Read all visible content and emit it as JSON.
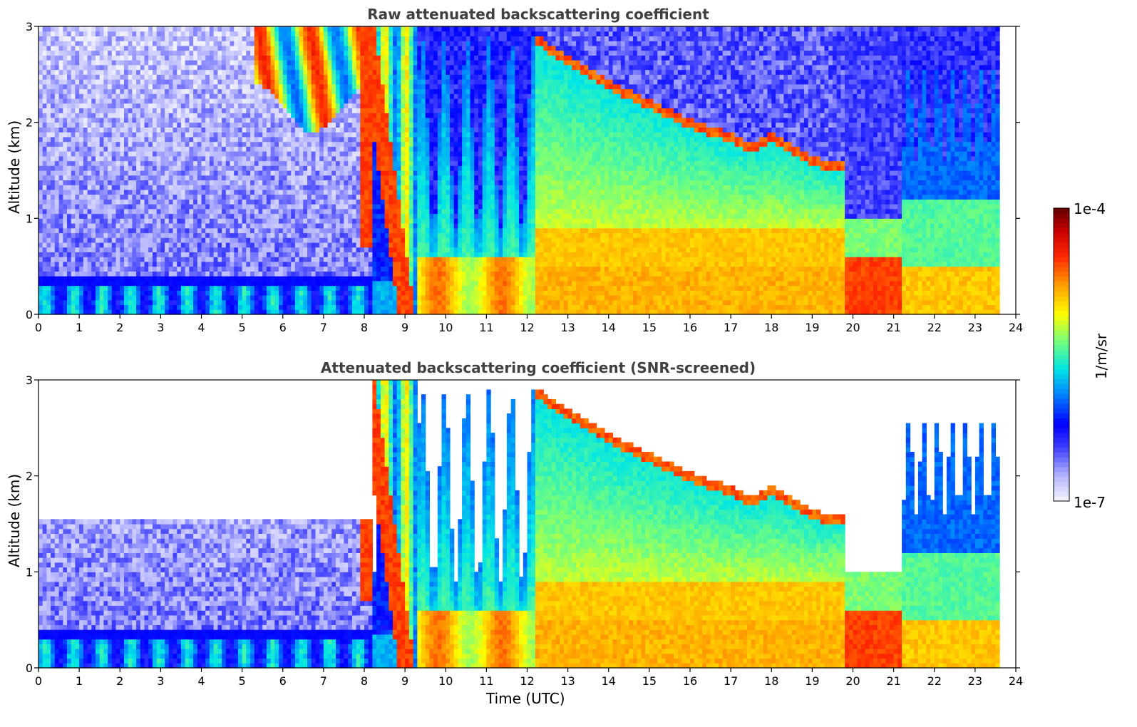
{
  "chart_data": [
    {
      "type": "heatmap",
      "title": "Raw attenuated backscattering coefficient",
      "xlabel": "",
      "ylabel": "Altitude (km)",
      "xlim": [
        0,
        24
      ],
      "ylim": [
        0,
        3
      ],
      "xticks": [
        "0",
        "1",
        "2",
        "3",
        "4",
        "5",
        "6",
        "7",
        "8",
        "9",
        "10",
        "11",
        "12",
        "13",
        "14",
        "15",
        "16",
        "17",
        "18",
        "19",
        "20",
        "21",
        "22",
        "23",
        "24"
      ],
      "yticks": [
        "0",
        "1",
        "2",
        "3"
      ],
      "cloud_top_km": [
        [
          12.3,
          2.85
        ],
        [
          13.0,
          2.65
        ],
        [
          13.8,
          2.45
        ],
        [
          14.5,
          2.3
        ],
        [
          15.0,
          2.2
        ],
        [
          16.0,
          2.0
        ],
        [
          17.0,
          1.85
        ],
        [
          17.5,
          1.75
        ],
        [
          18.0,
          1.85
        ],
        [
          18.5,
          1.75
        ],
        [
          19.0,
          1.6
        ],
        [
          19.8,
          1.55
        ]
      ],
      "screened": false
    },
    {
      "type": "heatmap",
      "title": "Attenuated backscattering coefficient (SNR-screened)",
      "xlabel": "Time (UTC)",
      "ylabel": "Altitude (km)",
      "xlim": [
        0,
        24
      ],
      "ylim": [
        0,
        3
      ],
      "xticks": [
        "0",
        "1",
        "2",
        "3",
        "4",
        "5",
        "6",
        "7",
        "8",
        "9",
        "10",
        "11",
        "12",
        "13",
        "14",
        "15",
        "16",
        "17",
        "18",
        "19",
        "20",
        "21",
        "22",
        "23",
        "24"
      ],
      "yticks": [
        "0",
        "1",
        "2",
        "3"
      ],
      "cloud_top_km": [
        [
          12.3,
          2.85
        ],
        [
          13.0,
          2.65
        ],
        [
          13.8,
          2.45
        ],
        [
          14.5,
          2.3
        ],
        [
          15.0,
          2.2
        ],
        [
          16.0,
          2.0
        ],
        [
          17.0,
          1.85
        ],
        [
          17.5,
          1.75
        ],
        [
          18.0,
          1.85
        ],
        [
          18.5,
          1.75
        ],
        [
          19.0,
          1.6
        ],
        [
          19.8,
          1.55
        ]
      ],
      "screened": true
    }
  ],
  "colorbar": {
    "label": "1/m/sr",
    "max_label": "1e-4",
    "min_label": "1e-7",
    "colors": [
      "#e8e8ff",
      "#b0b0ff",
      "#0000ff",
      "#00a0ff",
      "#00ffff",
      "#80ff80",
      "#ffff00",
      "#ff8000",
      "#ff0000",
      "#800000"
    ]
  }
}
